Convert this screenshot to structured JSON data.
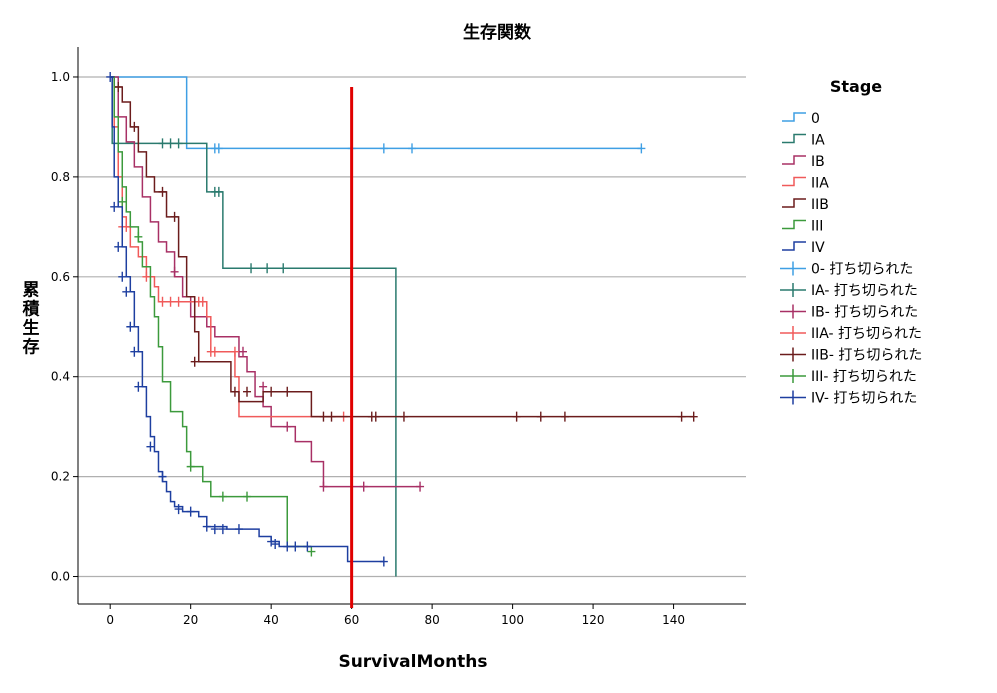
{
  "chart_data": {
    "type": "line",
    "title": "生存関数",
    "xlabel": "SurvivalMonths",
    "ylabel": "累積生存",
    "xlim": [
      -8,
      158
    ],
    "ylim": [
      -0.055,
      1.06
    ],
    "xticks": [
      0,
      20,
      40,
      60,
      80,
      100,
      120,
      140
    ],
    "yticks": [
      "0.0",
      "0.2",
      "0.4",
      "0.6",
      "0.8",
      "1.0"
    ],
    "ytick_values": [
      0.0,
      0.2,
      0.4,
      0.6,
      0.8,
      1.0
    ],
    "grid": "horizontal",
    "legend": {
      "title": "Stage",
      "placement": "right",
      "items": [
        "0",
        "IA",
        "IB",
        "IIA",
        "IIB",
        "III",
        "IV",
        "0- 打ち切られた",
        "IA- 打ち切られた",
        "IB- 打ち切られた",
        "IIA- 打ち切られた",
        "IIB- 打ち切られた",
        "III- 打ち切られた",
        "IV- 打ち切られた"
      ]
    },
    "reference_line": {
      "x": 60,
      "color": "#e00000"
    },
    "series": [
      {
        "name": "0",
        "color": "#3f9fe4",
        "steps": [
          [
            0,
            1.0
          ],
          [
            19,
            0.857
          ],
          [
            132,
            0.857
          ]
        ],
        "censored": [
          [
            26,
            0.857
          ],
          [
            27,
            0.857
          ],
          [
            60,
            0.857
          ],
          [
            68,
            0.857
          ],
          [
            75,
            0.857
          ],
          [
            132,
            0.857
          ]
        ]
      },
      {
        "name": "IA",
        "color": "#2a7a6e",
        "steps": [
          [
            0,
            1.0
          ],
          [
            0.5,
            0.867
          ],
          [
            24,
            0.77
          ],
          [
            28,
            0.617
          ],
          [
            71,
            0.617
          ],
          [
            71,
            0.0
          ]
        ],
        "censored": [
          [
            13,
            0.867
          ],
          [
            15,
            0.867
          ],
          [
            17,
            0.867
          ],
          [
            26,
            0.77
          ],
          [
            27,
            0.77
          ],
          [
            35,
            0.617
          ],
          [
            39,
            0.617
          ],
          [
            43,
            0.617
          ]
        ]
      },
      {
        "name": "IB",
        "color": "#a83065",
        "steps": [
          [
            0,
            1.0
          ],
          [
            2,
            0.92
          ],
          [
            4,
            0.87
          ],
          [
            6,
            0.82
          ],
          [
            8,
            0.76
          ],
          [
            10,
            0.71
          ],
          [
            12,
            0.67
          ],
          [
            14,
            0.65
          ],
          [
            16,
            0.6
          ],
          [
            18,
            0.56
          ],
          [
            20,
            0.52
          ],
          [
            24,
            0.5
          ],
          [
            26,
            0.48
          ],
          [
            32,
            0.44
          ],
          [
            34,
            0.41
          ],
          [
            36,
            0.36
          ],
          [
            38,
            0.34
          ],
          [
            40,
            0.3
          ],
          [
            46,
            0.27
          ],
          [
            50,
            0.23
          ],
          [
            53,
            0.18
          ],
          [
            77,
            0.18
          ]
        ],
        "censored": [
          [
            16,
            0.61
          ],
          [
            33,
            0.45
          ],
          [
            38,
            0.38
          ],
          [
            44,
            0.3
          ],
          [
            53,
            0.18
          ],
          [
            63,
            0.18
          ],
          [
            77,
            0.18
          ]
        ]
      },
      {
        "name": "IIA",
        "color": "#f05a5a",
        "steps": [
          [
            0,
            1.0
          ],
          [
            1,
            0.9
          ],
          [
            2,
            0.8
          ],
          [
            3,
            0.72
          ],
          [
            4,
            0.7
          ],
          [
            5,
            0.66
          ],
          [
            7,
            0.64
          ],
          [
            9,
            0.6
          ],
          [
            11,
            0.58
          ],
          [
            12,
            0.55
          ],
          [
            24,
            0.52
          ],
          [
            25,
            0.45
          ],
          [
            31,
            0.4
          ],
          [
            32,
            0.32
          ],
          [
            59,
            0.32
          ]
        ],
        "censored": [
          [
            3,
            0.7
          ],
          [
            4,
            0.7
          ],
          [
            9,
            0.6
          ],
          [
            13,
            0.55
          ],
          [
            15,
            0.55
          ],
          [
            17,
            0.55
          ],
          [
            21,
            0.55
          ],
          [
            22,
            0.55
          ],
          [
            23,
            0.55
          ],
          [
            25,
            0.45
          ],
          [
            26,
            0.45
          ],
          [
            31,
            0.45
          ],
          [
            58,
            0.32
          ]
        ]
      },
      {
        "name": "IIB",
        "color": "#6b1c1c",
        "steps": [
          [
            0,
            1.0
          ],
          [
            1,
            0.98
          ],
          [
            3,
            0.95
          ],
          [
            5,
            0.9
          ],
          [
            7,
            0.85
          ],
          [
            9,
            0.8
          ],
          [
            11,
            0.77
          ],
          [
            14,
            0.72
          ],
          [
            17,
            0.64
          ],
          [
            19,
            0.56
          ],
          [
            21,
            0.49
          ],
          [
            22,
            0.43
          ],
          [
            30,
            0.37
          ],
          [
            32,
            0.35
          ],
          [
            38,
            0.37
          ],
          [
            50,
            0.32
          ],
          [
            145,
            0.32
          ]
        ],
        "censored": [
          [
            2,
            0.98
          ],
          [
            6,
            0.9
          ],
          [
            13,
            0.77
          ],
          [
            16,
            0.72
          ],
          [
            21,
            0.43
          ],
          [
            31,
            0.37
          ],
          [
            34,
            0.37
          ],
          [
            40,
            0.37
          ],
          [
            44,
            0.37
          ],
          [
            53,
            0.32
          ],
          [
            55,
            0.32
          ],
          [
            65,
            0.32
          ],
          [
            66,
            0.32
          ],
          [
            73,
            0.32
          ],
          [
            101,
            0.32
          ],
          [
            107,
            0.32
          ],
          [
            113,
            0.32
          ],
          [
            142,
            0.32
          ],
          [
            145,
            0.32
          ]
        ]
      },
      {
        "name": "III",
        "color": "#3c9a3c",
        "steps": [
          [
            0,
            1.0
          ],
          [
            1,
            0.92
          ],
          [
            2,
            0.85
          ],
          [
            3,
            0.78
          ],
          [
            4,
            0.73
          ],
          [
            5,
            0.7
          ],
          [
            7,
            0.67
          ],
          [
            8,
            0.62
          ],
          [
            10,
            0.56
          ],
          [
            11,
            0.52
          ],
          [
            12,
            0.46
          ],
          [
            13,
            0.39
          ],
          [
            15,
            0.33
          ],
          [
            18,
            0.3
          ],
          [
            19,
            0.25
          ],
          [
            20,
            0.22
          ],
          [
            23,
            0.19
          ],
          [
            25,
            0.16
          ],
          [
            44,
            0.16
          ],
          [
            44,
            0.06
          ],
          [
            50,
            0.06
          ]
        ],
        "censored": [
          [
            3,
            0.75
          ],
          [
            7,
            0.68
          ],
          [
            20,
            0.22
          ],
          [
            28,
            0.16
          ],
          [
            34,
            0.16
          ],
          [
            50,
            0.05
          ]
        ]
      },
      {
        "name": "IV",
        "color": "#1e3fa0",
        "steps": [
          [
            0,
            1.0
          ],
          [
            0.5,
            0.9
          ],
          [
            1,
            0.8
          ],
          [
            2,
            0.74
          ],
          [
            3,
            0.66
          ],
          [
            4,
            0.6
          ],
          [
            5,
            0.57
          ],
          [
            6,
            0.5
          ],
          [
            7,
            0.45
          ],
          [
            8,
            0.38
          ],
          [
            9,
            0.32
          ],
          [
            10,
            0.28
          ],
          [
            11,
            0.25
          ],
          [
            12,
            0.21
          ],
          [
            13,
            0.19
          ],
          [
            14,
            0.17
          ],
          [
            15,
            0.15
          ],
          [
            16,
            0.14
          ],
          [
            18,
            0.13
          ],
          [
            22,
            0.12
          ],
          [
            24,
            0.1
          ],
          [
            29,
            0.095
          ],
          [
            37,
            0.08
          ],
          [
            40,
            0.07
          ],
          [
            42,
            0.06
          ],
          [
            59,
            0.06
          ],
          [
            59,
            0.03
          ],
          [
            68,
            0.03
          ]
        ],
        "censored": [
          [
            0,
            1.0
          ],
          [
            1,
            0.74
          ],
          [
            2,
            0.66
          ],
          [
            3,
            0.6
          ],
          [
            4,
            0.57
          ],
          [
            5,
            0.5
          ],
          [
            6,
            0.45
          ],
          [
            7,
            0.38
          ],
          [
            10,
            0.26
          ],
          [
            13,
            0.2
          ],
          [
            17,
            0.135
          ],
          [
            20,
            0.13
          ],
          [
            24,
            0.1
          ],
          [
            26,
            0.095
          ],
          [
            28,
            0.095
          ],
          [
            32,
            0.095
          ],
          [
            40,
            0.07
          ],
          [
            41,
            0.065
          ],
          [
            44,
            0.06
          ],
          [
            46,
            0.06
          ],
          [
            49,
            0.06
          ],
          [
            68,
            0.03
          ]
        ]
      }
    ]
  }
}
